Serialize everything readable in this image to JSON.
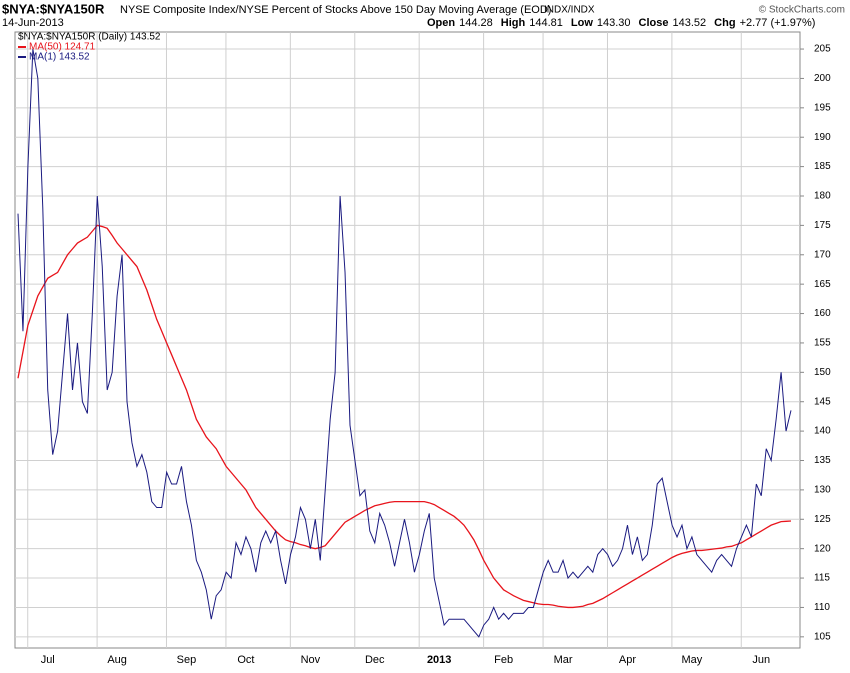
{
  "chart_data": {
    "type": "line",
    "title": "$NYA:$NYA150R",
    "subtitle": "NYSE Composite Index/NYSE Percent of Stocks Above 150 Day Moving Average (EOD)",
    "exchange": "INDX/INDX",
    "credit": "© StockCharts.com",
    "date": "14-Jun-2013",
    "quote": [
      {
        "label": "Open",
        "value": "144.28"
      },
      {
        "label": "High",
        "value": "144.81"
      },
      {
        "label": "Low",
        "value": "143.30"
      },
      {
        "label": "Close",
        "value": "143.52"
      },
      {
        "label": "Chg",
        "value": "+2.77 (+1.97%)"
      }
    ],
    "legend_price": "$NYA:$NYA150R (Daily) 143.52",
    "categories": [
      null,
      null,
      null,
      null,
      null,
      null,
      "Jul",
      null,
      null,
      null,
      null,
      null,
      null,
      null,
      null,
      null,
      null,
      null,
      null,
      null,
      "Aug",
      null,
      null,
      null,
      null,
      null,
      null,
      null,
      null,
      null,
      null,
      null,
      null,
      null,
      "Sep",
      null,
      null,
      null,
      null,
      null,
      null,
      null,
      null,
      null,
      null,
      null,
      "Oct",
      null,
      null,
      null,
      null,
      null,
      null,
      null,
      null,
      null,
      null,
      null,
      null,
      "Nov",
      null,
      null,
      null,
      null,
      null,
      null,
      null,
      null,
      null,
      null,
      null,
      null,
      "Dec",
      null,
      null,
      null,
      null,
      null,
      null,
      null,
      null,
      null,
      null,
      null,
      null,
      "2013",
      null,
      null,
      null,
      null,
      null,
      null,
      null,
      null,
      null,
      null,
      null,
      null,
      "Feb",
      null,
      null,
      null,
      null,
      null,
      null,
      null,
      null,
      null,
      null,
      null,
      "Mar",
      null,
      null,
      null,
      null,
      null,
      null,
      null,
      null,
      null,
      null,
      null,
      null,
      "Apr",
      null,
      null,
      null,
      null,
      null,
      null,
      null,
      null,
      null,
      null,
      null,
      null,
      "May",
      null,
      null,
      null,
      null,
      null,
      null,
      null,
      null,
      null,
      null,
      null,
      null,
      null,
      "Jun",
      null,
      null,
      null,
      null,
      null,
      null
    ],
    "series": [
      {
        "name": "MA(50) 124.71",
        "color": "#e8141c",
        "values": [
          149,
          153.5,
          158,
          160.5,
          163,
          164.5,
          166,
          166.5,
          167,
          168.5,
          170,
          171,
          172,
          172.5,
          173,
          174,
          175,
          174.8,
          174.5,
          173.3,
          172,
          171,
          170,
          169,
          168,
          166,
          164,
          161.5,
          159,
          157,
          155,
          153,
          151,
          149,
          147,
          144.5,
          142,
          140.5,
          139,
          138,
          137,
          135.5,
          134,
          133,
          132,
          131,
          130,
          128.5,
          127,
          126,
          125,
          124,
          123,
          122.2,
          121.5,
          121.2,
          121,
          120.7,
          120.5,
          120.2,
          120,
          120.2,
          120.5,
          121.5,
          122.5,
          123.5,
          124.5,
          125,
          125.5,
          126,
          126.5,
          126.9,
          127.3,
          127.5,
          127.7,
          127.9,
          128,
          128,
          128,
          128,
          128,
          128,
          128,
          127.8,
          127.5,
          127,
          126.5,
          126,
          125.5,
          124.8,
          124,
          122.8,
          121.5,
          119.8,
          118,
          116.5,
          115,
          114,
          113,
          112.5,
          112,
          111.6,
          111.2,
          111,
          110.8,
          110.6,
          110.5,
          110.5,
          110.4,
          110.2,
          110.1,
          110,
          110,
          110.1,
          110.2,
          110.5,
          110.7,
          111.1,
          111.5,
          112,
          112.5,
          113,
          113.5,
          114,
          114.5,
          115,
          115.5,
          116,
          116.5,
          117,
          117.5,
          118,
          118.5,
          118.9,
          119.2,
          119.4,
          119.6,
          119.7,
          119.7,
          119.8,
          119.9,
          120,
          120.1,
          120.3,
          120.4,
          120.7,
          121,
          121.5,
          122,
          122.5,
          123,
          123.5,
          124,
          124.3,
          124.6,
          124.65,
          124.71
        ]
      },
      {
        "name": "MA(1) 143.52",
        "color": "#1a1a80",
        "values": [
          177,
          157,
          185,
          205,
          200,
          178,
          147,
          136,
          140,
          150,
          160,
          147,
          155,
          145,
          143,
          160,
          180,
          168,
          147,
          150,
          163,
          170,
          145,
          138,
          134,
          136,
          133,
          128,
          127,
          127,
          133,
          131,
          131,
          134,
          128,
          124,
          118,
          116,
          113,
          108,
          112,
          113,
          116,
          115,
          121,
          119,
          122,
          120,
          116,
          121,
          123,
          121,
          123,
          118,
          114,
          119,
          122,
          127,
          125,
          120,
          125,
          118,
          130,
          142,
          150,
          180,
          167,
          141,
          135,
          129,
          130,
          123,
          121,
          126,
          124,
          121,
          117,
          121,
          125,
          121,
          116,
          119,
          123,
          126,
          115,
          111,
          107,
          108,
          108,
          108,
          108,
          107,
          106,
          105,
          107,
          108,
          110,
          108,
          109,
          108,
          109,
          109,
          109,
          110,
          110,
          113,
          116,
          118,
          116,
          116,
          118,
          115,
          116,
          115,
          116,
          117,
          116,
          119,
          120,
          119,
          117,
          118,
          120,
          124,
          119,
          122,
          118,
          119,
          124,
          131,
          132,
          128,
          124,
          122,
          124,
          120,
          122,
          119,
          118,
          117,
          116,
          118,
          119,
          118,
          117,
          120,
          122,
          124,
          122,
          131,
          129,
          137,
          135,
          142,
          150,
          140,
          143.52
        ]
      }
    ],
    "ylim": [
      103.1,
      207.9
    ],
    "yticks": [
      105,
      110,
      115,
      120,
      125,
      130,
      135,
      140,
      145,
      150,
      155,
      160,
      165,
      170,
      175,
      180,
      185,
      190,
      195,
      200,
      205
    ],
    "grid": true
  }
}
